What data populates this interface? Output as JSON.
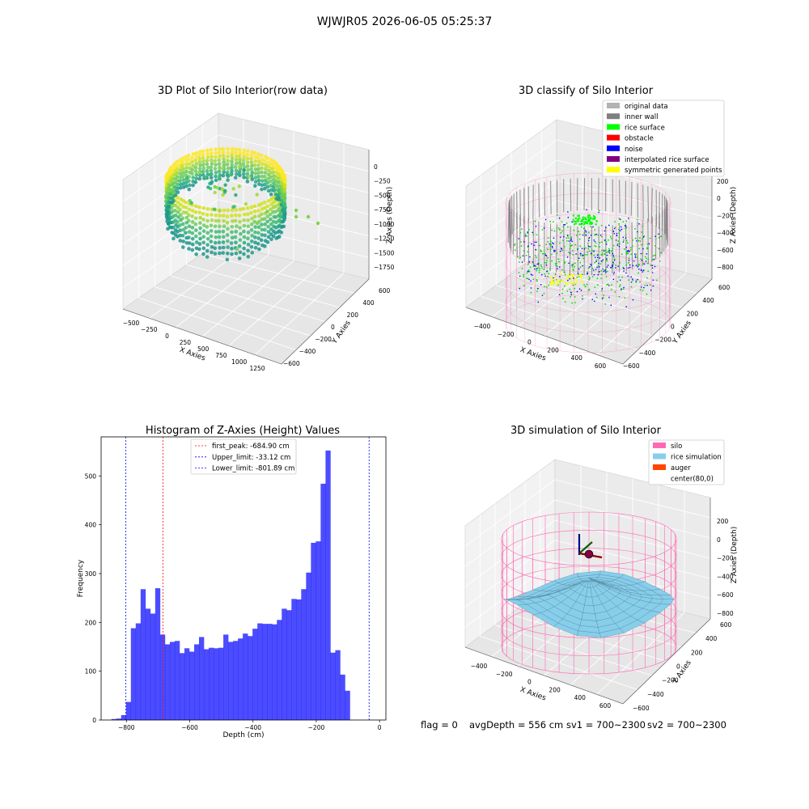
{
  "suptitle": "WJWJR05 2026-06-05 05:25:37",
  "footer": {
    "flag": "flag = 0",
    "avg_depth": "avgDepth = 556 cm",
    "sv1": "sv1 = 700~2300",
    "sv2": "sv2 = 700~2300"
  },
  "panels": {
    "raw": {
      "title": "3D Plot of Silo Interior(row data)",
      "xlabel": "X Axies",
      "ylabel": "Y Axies",
      "zlabel": "Z Axies (Depth)",
      "xticks": [
        "−500",
        "−250",
        "0",
        "250",
        "500",
        "750",
        "1000",
        "1250"
      ],
      "yticks": [
        "−600",
        "−400",
        "−200",
        "0",
        "200",
        "400",
        "600"
      ],
      "zticks": [
        "0",
        "−250",
        "−500",
        "−750",
        "−1000",
        "−1250",
        "−1500",
        "−1750"
      ]
    },
    "classify": {
      "title": "3D classify of Silo Interior",
      "xlabel": "X Axies",
      "ylabel": "Y Axies",
      "zlabel": "Z Axies (Depth)",
      "xticks": [
        "−400",
        "−200",
        "0",
        "200",
        "400",
        "600"
      ],
      "yticks": [
        "−600",
        "−400",
        "−200",
        "0",
        "200",
        "400",
        "600"
      ],
      "zticks": [
        "200",
        "0",
        "−200",
        "−400",
        "−600",
        "−800"
      ],
      "legend": [
        {
          "label": "original data",
          "color": "#b3b3b3"
        },
        {
          "label": "inner wall",
          "color": "#808080"
        },
        {
          "label": "rice surface",
          "color": "#00ff00"
        },
        {
          "label": "obstacle",
          "color": "#ff0000"
        },
        {
          "label": "noise",
          "color": "#0000ff"
        },
        {
          "label": "interpolated rice surface",
          "color": "#800080"
        },
        {
          "label": "symmetric generated points",
          "color": "#ffff00"
        }
      ]
    },
    "sim": {
      "title": "3D simulation of Silo Interior",
      "xlabel": "X Axies",
      "ylabel": "Y Axies",
      "zlabel": "Z Axies (Depth)",
      "xticks": [
        "−400",
        "−200",
        "0",
        "200",
        "400",
        "600"
      ],
      "yticks": [
        "−600",
        "−400",
        "−200",
        "0",
        "200",
        "400",
        "600"
      ],
      "zticks": [
        "200",
        "0",
        "−200",
        "−400",
        "−600",
        "−800"
      ],
      "legend": [
        {
          "label": "silo",
          "color": "#ff69b4"
        },
        {
          "label": "rice simulation",
          "color": "#87ceeb"
        },
        {
          "label": "auger",
          "color": "#ff4500"
        },
        {
          "label": "center(80,0)",
          "color": "none"
        }
      ]
    }
  },
  "chart_data": [
    {
      "type": "scatter",
      "title": "3D Plot of Silo Interior(row data)",
      "xlabel": "X Axies",
      "ylabel": "Y Axies",
      "zlabel": "Z Axies (Depth)",
      "xlim": [
        -600,
        1350
      ],
      "ylim": [
        -650,
        650
      ],
      "zlim": [
        -1800,
        50
      ]
    },
    {
      "type": "scatter",
      "title": "3D classify of Silo Interior",
      "xlabel": "X Axies",
      "ylabel": "Y Axies",
      "zlabel": "Z Axies (Depth)",
      "xlim": [
        -500,
        700
      ],
      "ylim": [
        -650,
        650
      ],
      "zlim": [
        -850,
        250
      ],
      "series": [
        {
          "name": "original data",
          "color": "#b3b3b3"
        },
        {
          "name": "inner wall",
          "color": "#808080"
        },
        {
          "name": "rice surface",
          "color": "#00ff00"
        },
        {
          "name": "obstacle",
          "color": "#ff0000"
        },
        {
          "name": "noise",
          "color": "#0000ff"
        },
        {
          "name": "interpolated rice surface",
          "color": "#800080"
        },
        {
          "name": "symmetric generated points",
          "color": "#ffff00"
        }
      ]
    },
    {
      "type": "bar",
      "title": "Histogram of Z-Axies (Height) Values",
      "xlabel": "Depth (cm)",
      "ylabel": "Frequency",
      "xlim": [
        -880,
        20
      ],
      "ylim": [
        0,
        580
      ],
      "xticks": [
        -800,
        -600,
        -400,
        -200,
        0
      ],
      "yticks": [
        0,
        100,
        200,
        300,
        400,
        500
      ],
      "bar_color": "#0000ff",
      "bar_alpha": 0.7,
      "bin_width": 15.38,
      "bin_edges_start": -847.5,
      "values": [
        2,
        3,
        10,
        37,
        188,
        198,
        268,
        228,
        218,
        270,
        175,
        155,
        160,
        162,
        137,
        147,
        140,
        155,
        170,
        145,
        148,
        147,
        148,
        175,
        160,
        162,
        167,
        177,
        172,
        187,
        198,
        197,
        197,
        196,
        205,
        228,
        225,
        248,
        247,
        268,
        302,
        363,
        366,
        484,
        552,
        138,
        143,
        93,
        60
      ],
      "reference_lines": [
        {
          "label": "first_peak: -684.90 cm",
          "x": -684.9,
          "color": "#ff0000"
        },
        {
          "label": "Upper_limit: -33.12 cm",
          "x": -33.12,
          "color": "#0000ff"
        },
        {
          "label": "Lower_limit: -801.89 cm",
          "x": -801.89,
          "color": "#0000ff"
        }
      ]
    },
    {
      "type": "area",
      "title": "3D simulation of Silo Interior",
      "xlabel": "X Axies",
      "ylabel": "Y Axies",
      "zlabel": "Z Axies (Depth)",
      "xlim": [
        -500,
        700
      ],
      "ylim": [
        -650,
        650
      ],
      "zlim": [
        -850,
        250
      ],
      "series": [
        {
          "name": "silo",
          "color": "#ff69b4"
        },
        {
          "name": "rice simulation",
          "color": "#87ceeb"
        },
        {
          "name": "auger",
          "color": "#ff4500"
        },
        {
          "name": "center(80,0)"
        }
      ]
    }
  ]
}
